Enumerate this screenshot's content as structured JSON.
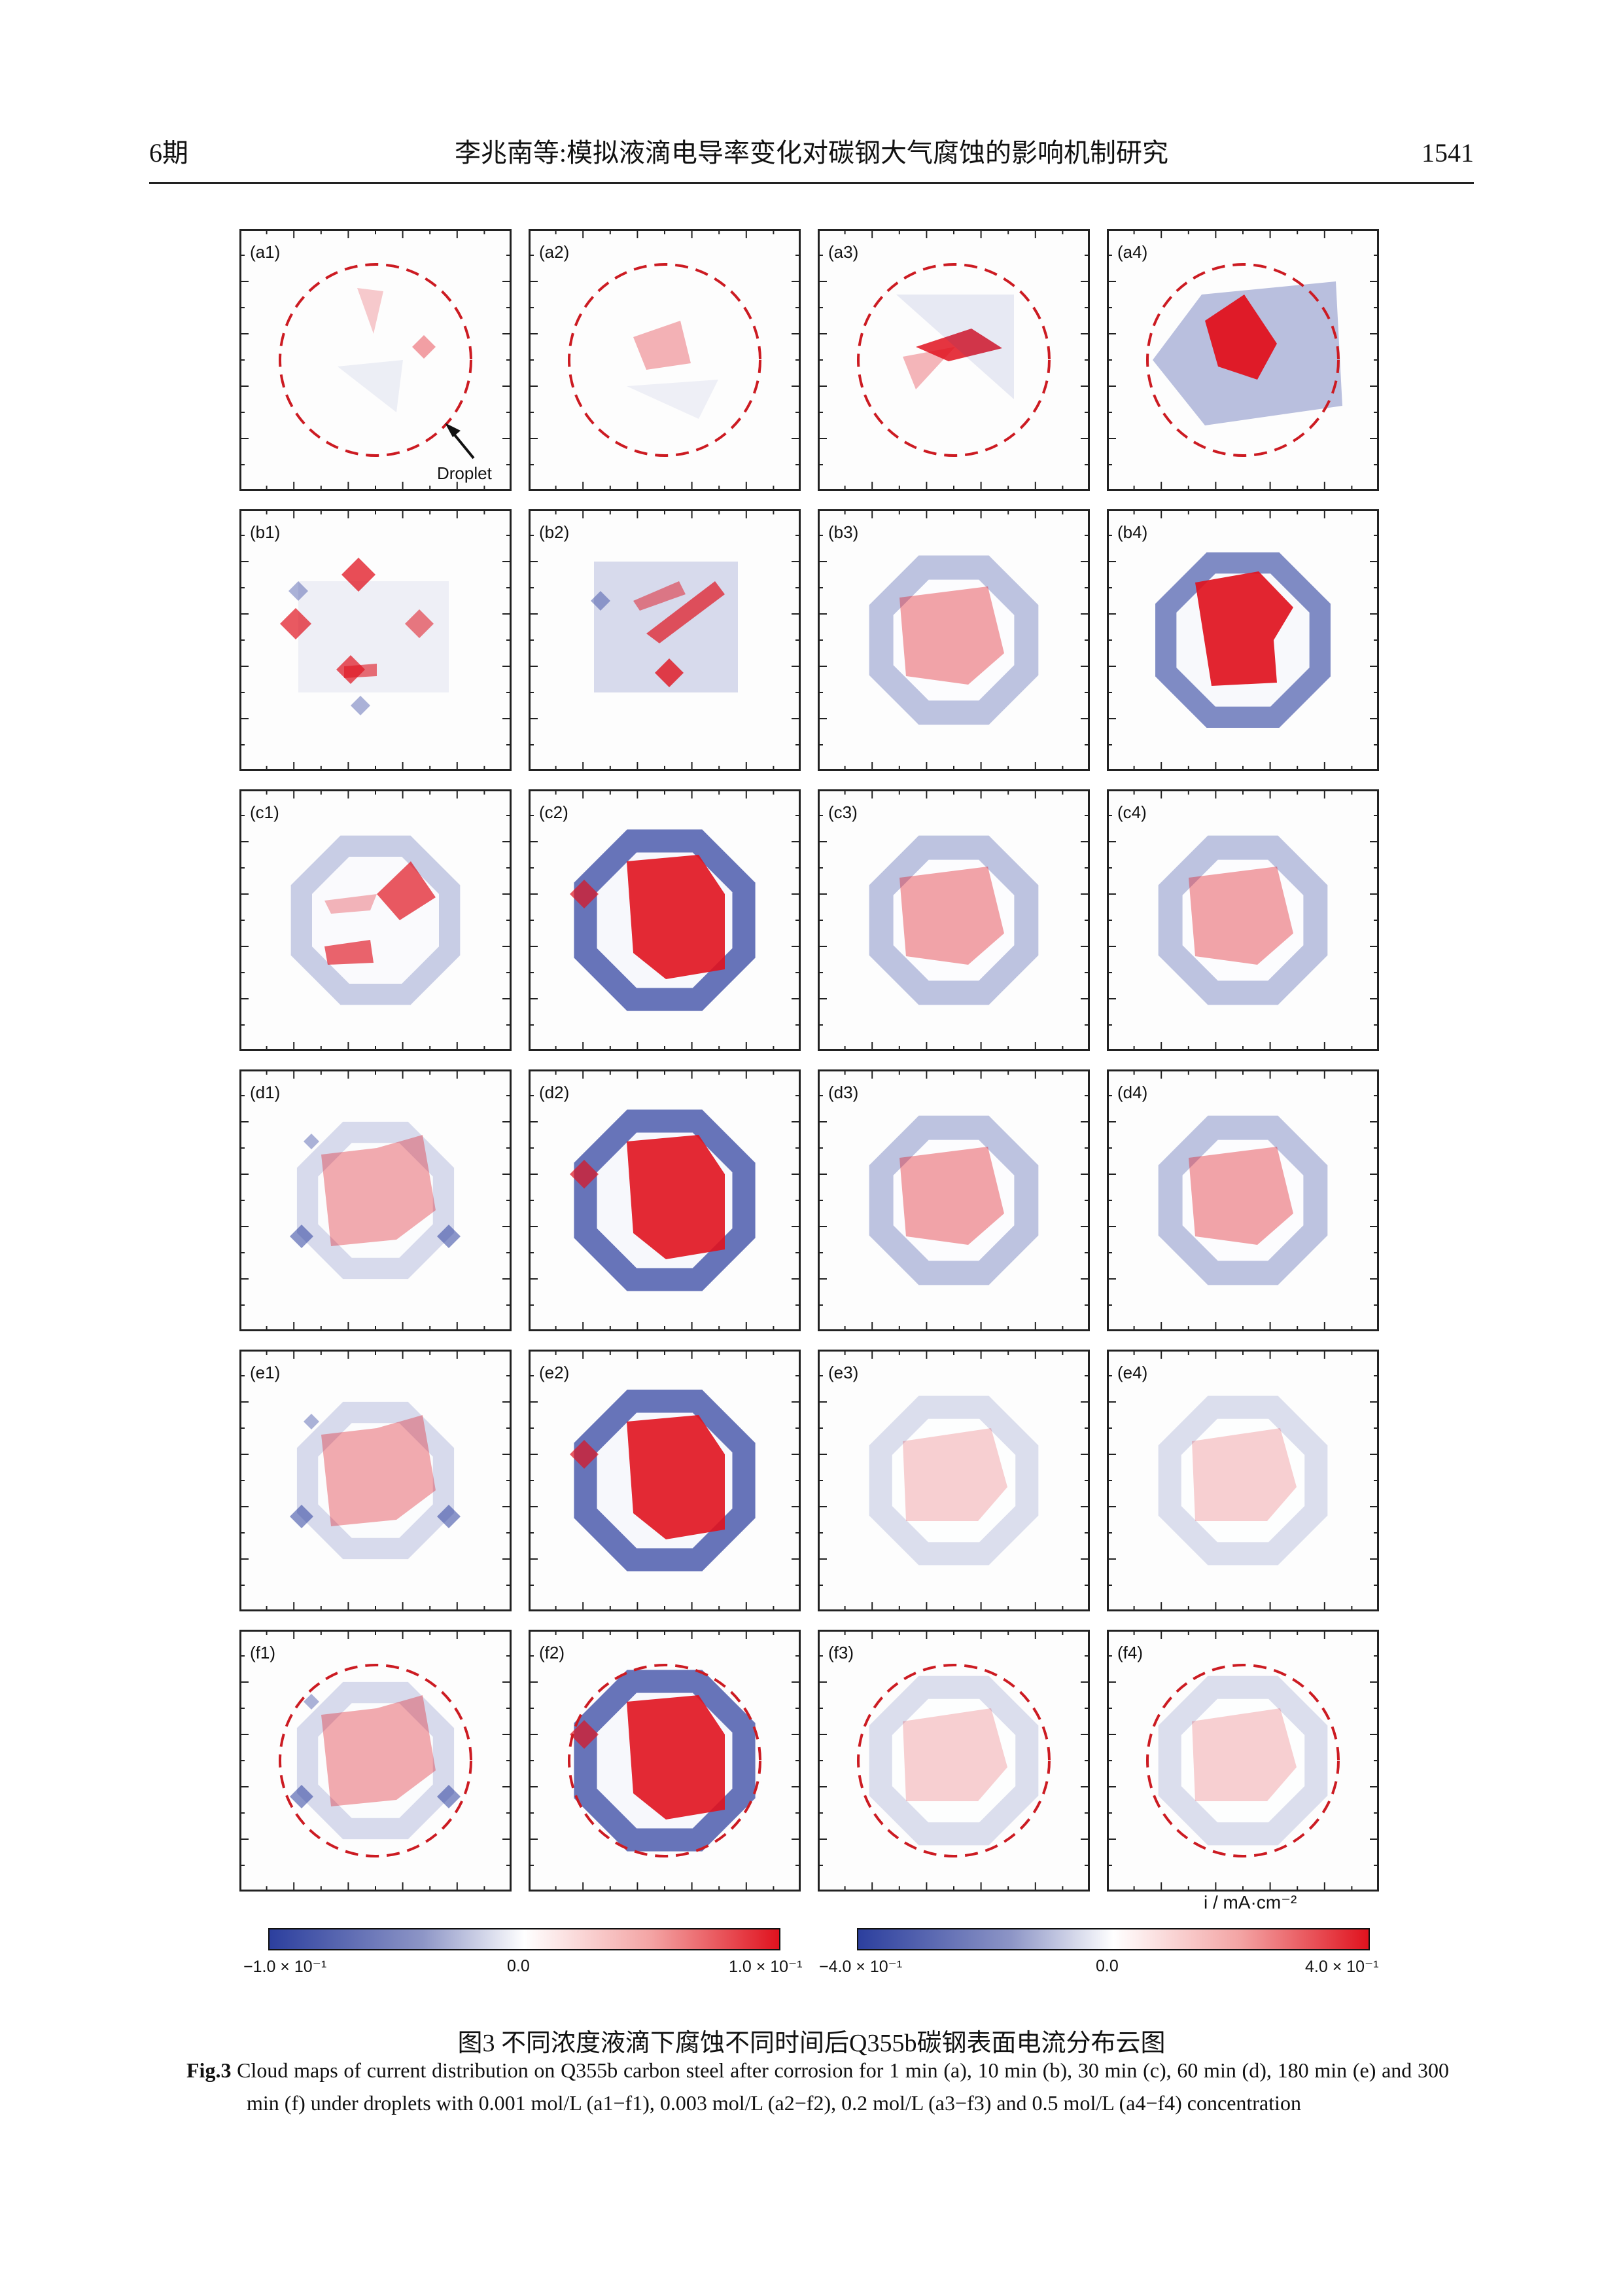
{
  "header": {
    "issue": "6期",
    "title": "李兆南等:模拟液滴电导率变化对碳钢大气腐蚀的影响机制研究",
    "page_number": "1541"
  },
  "figure": {
    "panels": [
      {
        "label": "(a1)",
        "droplet": true,
        "pattern": "a1"
      },
      {
        "label": "(a2)",
        "droplet": true,
        "pattern": "a2"
      },
      {
        "label": "(a3)",
        "droplet": true,
        "pattern": "a3"
      },
      {
        "label": "(a4)",
        "droplet": true,
        "pattern": "a4"
      },
      {
        "label": "(b1)",
        "droplet": false,
        "pattern": "b1"
      },
      {
        "label": "(b2)",
        "droplet": false,
        "pattern": "b2"
      },
      {
        "label": "(b3)",
        "droplet": false,
        "pattern": "ring_mild"
      },
      {
        "label": "(b4)",
        "droplet": false,
        "pattern": "ring_strong"
      },
      {
        "label": "(c1)",
        "droplet": false,
        "pattern": "c1"
      },
      {
        "label": "(c2)",
        "droplet": false,
        "pattern": "strong_anode"
      },
      {
        "label": "(c3)",
        "droplet": false,
        "pattern": "ring_mild"
      },
      {
        "label": "(c4)",
        "droplet": false,
        "pattern": "ring_mild"
      },
      {
        "label": "(d1)",
        "droplet": false,
        "pattern": "d1"
      },
      {
        "label": "(d2)",
        "droplet": false,
        "pattern": "strong_anode"
      },
      {
        "label": "(d3)",
        "droplet": false,
        "pattern": "ring_mild"
      },
      {
        "label": "(d4)",
        "droplet": false,
        "pattern": "ring_mild"
      },
      {
        "label": "(e1)",
        "droplet": false,
        "pattern": "d1"
      },
      {
        "label": "(e2)",
        "droplet": false,
        "pattern": "strong_anode"
      },
      {
        "label": "(e3)",
        "droplet": false,
        "pattern": "ring_light"
      },
      {
        "label": "(e4)",
        "droplet": false,
        "pattern": "ring_light"
      },
      {
        "label": "(f1)",
        "droplet": true,
        "pattern": "d1"
      },
      {
        "label": "(f2)",
        "droplet": true,
        "pattern": "strong_anode"
      },
      {
        "label": "(f3)",
        "droplet": true,
        "pattern": "ring_light"
      },
      {
        "label": "(f4)",
        "droplet": true,
        "pattern": "ring_light"
      }
    ],
    "droplet_annotation": "Droplet",
    "colorbar_unit": "i / mA·cm⁻²",
    "colorbars": [
      {
        "min_label": "−1.0 × 10⁻¹",
        "mid_label": "0.0",
        "max_label": "1.0 × 10⁻¹",
        "min": -0.1,
        "max": 0.1
      },
      {
        "min_label": "−4.0 × 10⁻¹",
        "mid_label": "0.0",
        "max_label": "4.0 × 10⁻¹",
        "min": -0.4,
        "max": 0.4
      }
    ],
    "colors": {
      "cathodic": "#2c3f9e",
      "anodic": "#e0121e",
      "zero": "#ffffff",
      "droplet_ring": "#cc1b22"
    }
  },
  "caption": {
    "zh": "图3 不同浓度液滴下腐蚀不同时间后Q355b碳钢表面电流分布云图",
    "en_label": "Fig.3",
    "en_text": "Cloud maps of current distribution on Q355b carbon steel after corrosion for 1 min (a), 10 min (b), 30 min (c), 60 min (d), 180 min (e) and 300 min (f) under droplets with 0.001 mol/L (a1−f1), 0.003 mol/L (a2−f2), 0.2 mol/L (a3−f3) and 0.5 mol/L (a4−f4) concentration"
  }
}
